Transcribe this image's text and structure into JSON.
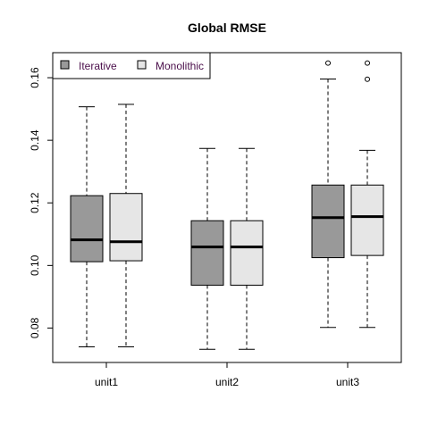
{
  "chart_data": {
    "type": "boxplot",
    "title": "Global RMSE",
    "xlabel": "",
    "ylabel": "",
    "ylim": [
      0.069,
      0.168
    ],
    "y_ticks": [
      0.08,
      0.1,
      0.12,
      0.14,
      0.16
    ],
    "y_tick_labels": [
      "0.08",
      "0.10",
      "0.12",
      "0.14",
      "0.16"
    ],
    "categories": [
      "unit1",
      "unit2",
      "unit3"
    ],
    "legend": {
      "position": "top-left"
    },
    "series": [
      {
        "name": "Iterative",
        "color": "#999999",
        "boxes": [
          {
            "whisker_low": 0.074,
            "q1": 0.1012,
            "median": 0.1082,
            "q3": 0.1223,
            "whisker_high": 0.1507,
            "outliers": []
          },
          {
            "whisker_low": 0.0732,
            "q1": 0.0937,
            "median": 0.1059,
            "q3": 0.1143,
            "whisker_high": 0.1374,
            "outliers": []
          },
          {
            "whisker_low": 0.0802,
            "q1": 0.1025,
            "median": 0.1153,
            "q3": 0.1257,
            "whisker_high": 0.1596,
            "outliers": [
              0.1647
            ]
          }
        ]
      },
      {
        "name": "Monolithic",
        "color": "#e6e6e6",
        "boxes": [
          {
            "whisker_low": 0.074,
            "q1": 0.1015,
            "median": 0.1076,
            "q3": 0.123,
            "whisker_high": 0.1515,
            "outliers": []
          },
          {
            "whisker_low": 0.0732,
            "q1": 0.0937,
            "median": 0.1059,
            "q3": 0.1143,
            "whisker_high": 0.1374,
            "outliers": []
          },
          {
            "whisker_low": 0.0802,
            "q1": 0.1032,
            "median": 0.1156,
            "q3": 0.1257,
            "whisker_high": 0.1368,
            "outliers": [
              0.1595,
              0.1647
            ]
          }
        ]
      }
    ]
  }
}
